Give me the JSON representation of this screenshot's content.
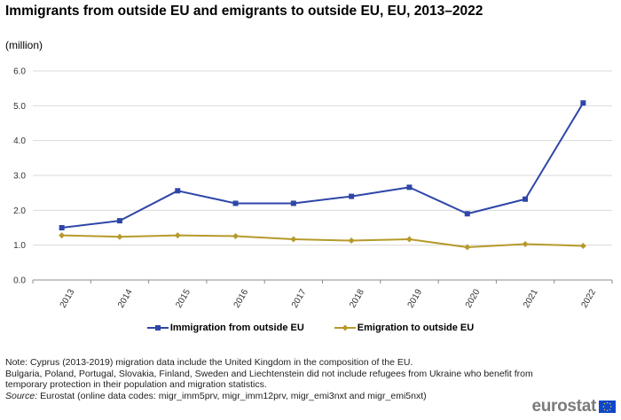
{
  "title": "Immigrants from outside EU and emigrants to outside EU,  EU, 2013–2022",
  "subtitle": "(million)",
  "chart_data": {
    "type": "line",
    "categories": [
      "2013",
      "2014",
      "2015",
      "2016",
      "2017",
      "2018",
      "2019",
      "2020",
      "2021",
      "2022"
    ],
    "ylim": [
      0,
      6
    ],
    "yticks": [
      "0.0",
      "1.0",
      "2.0",
      "3.0",
      "4.0",
      "5.0",
      "6.0"
    ],
    "series": [
      {
        "name": "Immigration from outside EU",
        "color": "#2e46a8",
        "marker": "square",
        "values": [
          1.5,
          1.7,
          2.56,
          2.2,
          2.2,
          2.4,
          2.66,
          1.9,
          2.32,
          5.08
        ]
      },
      {
        "name": "Emigration to outside EU",
        "color": "#b69a2b",
        "marker": "diamond",
        "values": [
          1.28,
          1.24,
          1.28,
          1.26,
          1.17,
          1.13,
          1.17,
          0.94,
          1.03,
          0.98
        ]
      }
    ],
    "grid": true,
    "legend_position": "bottom"
  },
  "notes": {
    "line1": "Note: Cyprus (2013-2019) migration data include the United Kingdom in the composition of the EU.",
    "line2": "Bulgaria, Poland, Portugal, Slovakia, Finland, Sweden and Liechtenstein did not include refugees from Ukraine who benefit from temporary protection in their population and migration statistics.",
    "source_label": "Source:",
    "source_text": " Eurostat (online data codes: migr_imm5prv, migr_imm12prv, migr_emi3nxt and migr_emi5nxt)"
  },
  "logo": {
    "text": "eurostat",
    "icon": "eu-flag-icon",
    "flag_color": "#0e47cb"
  }
}
